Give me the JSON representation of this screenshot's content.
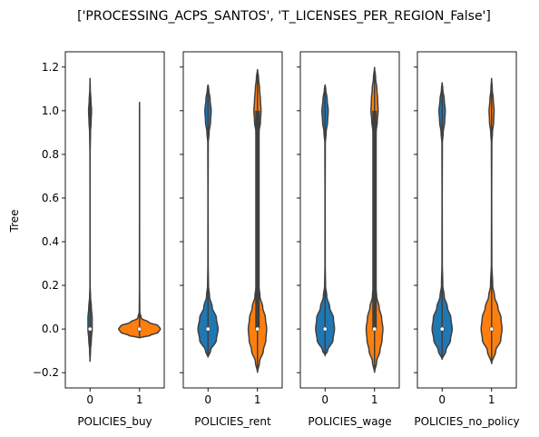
{
  "title": "['PROCESSING_ACPS_SANTOS', 'T_LICENSES_PER_REGION_False']",
  "colors": {
    "group0": "#1f77b4",
    "group1": "#ff7f0e",
    "edge": "#3f3f3f",
    "median": "#ffffff"
  },
  "chart_data": {
    "type": "violin",
    "title": "['PROCESSING_ACPS_SANTOS', 'T_LICENSES_PER_REGION_False']",
    "ylabel": "Tree",
    "ylim": [
      -0.27,
      1.27
    ],
    "yticks": [
      -0.2,
      0.0,
      0.2,
      0.4,
      0.6,
      0.8,
      1.0,
      1.2
    ],
    "ytick_labels": [
      "−0.2",
      "0.0",
      "0.2",
      "0.4",
      "0.6",
      "0.8",
      "1.0",
      "1.2"
    ],
    "shared_y": true,
    "subplots": [
      {
        "xlabel": "POLICIES_buy",
        "categories": [
          "0",
          "1"
        ],
        "violins": [
          {
            "category": "0",
            "extent": [
              -0.15,
              1.15
            ],
            "median": 0.0,
            "q1": 0.0,
            "q3": 0.0,
            "profile": [
              [
                -0.15,
                0.0
              ],
              [
                -0.1,
                0.02
              ],
              [
                -0.05,
                0.06
              ],
              [
                0.0,
                0.1
              ],
              [
                0.05,
                0.1
              ],
              [
                0.1,
                0.06
              ],
              [
                0.15,
                0.02
              ],
              [
                0.2,
                0.004
              ],
              [
                0.4,
                0.002
              ],
              [
                0.6,
                0.002
              ],
              [
                0.8,
                0.004
              ],
              [
                0.9,
                0.02
              ],
              [
                0.95,
                0.05
              ],
              [
                1.0,
                0.07
              ],
              [
                1.05,
                0.04
              ],
              [
                1.1,
                0.01
              ],
              [
                1.15,
                0.0
              ]
            ]
          },
          {
            "category": "1",
            "extent": [
              -0.04,
              1.04
            ],
            "median": 0.0,
            "q1": 0.0,
            "q3": 0.0,
            "profile": [
              [
                -0.04,
                0.0
              ],
              [
                -0.03,
                0.5
              ],
              [
                -0.015,
                0.9
              ],
              [
                0.0,
                1.0
              ],
              [
                0.015,
                0.9
              ],
              [
                0.03,
                0.45
              ],
              [
                0.05,
                0.08
              ],
              [
                0.08,
                0.012
              ],
              [
                0.2,
                0.004
              ],
              [
                0.6,
                0.003
              ],
              [
                1.0,
                0.003
              ],
              [
                1.04,
                0.0
              ]
            ]
          }
        ]
      },
      {
        "xlabel": "POLICIES_rent",
        "categories": [
          "0",
          "1"
        ],
        "violins": [
          {
            "category": "0",
            "extent": [
              -0.13,
              1.12
            ],
            "median": 0.0,
            "q1": 0.0,
            "q3": 0.0,
            "profile": [
              [
                -0.13,
                0.0
              ],
              [
                -0.1,
                0.12
              ],
              [
                -0.05,
                0.4
              ],
              [
                0.0,
                0.48
              ],
              [
                0.05,
                0.4
              ],
              [
                0.1,
                0.2
              ],
              [
                0.15,
                0.07
              ],
              [
                0.2,
                0.02
              ],
              [
                0.3,
                0.006
              ],
              [
                0.6,
                0.004
              ],
              [
                0.85,
                0.01
              ],
              [
                0.9,
                0.05
              ],
              [
                0.95,
                0.12
              ],
              [
                1.0,
                0.15
              ],
              [
                1.05,
                0.1
              ],
              [
                1.1,
                0.03
              ],
              [
                1.12,
                0.0
              ]
            ]
          },
          {
            "category": "1",
            "extent": [
              -0.2,
              1.19
            ],
            "median": 0.0,
            "q1": 0.0,
            "q3": 1.0,
            "profile": [
              [
                -0.2,
                0.0
              ],
              [
                -0.15,
                0.1
              ],
              [
                -0.1,
                0.28
              ],
              [
                -0.05,
                0.4
              ],
              [
                0.0,
                0.44
              ],
              [
                0.05,
                0.38
              ],
              [
                0.1,
                0.25
              ],
              [
                0.15,
                0.12
              ],
              [
                0.2,
                0.06
              ],
              [
                0.3,
                0.03
              ],
              [
                0.5,
                0.02
              ],
              [
                0.7,
                0.02
              ],
              [
                0.85,
                0.03
              ],
              [
                0.9,
                0.07
              ],
              [
                0.95,
                0.14
              ],
              [
                1.0,
                0.17
              ],
              [
                1.05,
                0.14
              ],
              [
                1.1,
                0.1
              ],
              [
                1.15,
                0.05
              ],
              [
                1.19,
                0.0
              ]
            ]
          }
        ]
      },
      {
        "xlabel": "POLICIES_wage",
        "categories": [
          "0",
          "1"
        ],
        "violins": [
          {
            "category": "0",
            "extent": [
              -0.12,
              1.12
            ],
            "median": 0.0,
            "q1": 0.0,
            "q3": 0.0,
            "profile": [
              [
                -0.12,
                0.0
              ],
              [
                -0.1,
                0.12
              ],
              [
                -0.05,
                0.38
              ],
              [
                0.0,
                0.45
              ],
              [
                0.05,
                0.4
              ],
              [
                0.1,
                0.22
              ],
              [
                0.15,
                0.08
              ],
              [
                0.2,
                0.02
              ],
              [
                0.3,
                0.006
              ],
              [
                0.6,
                0.004
              ],
              [
                0.85,
                0.01
              ],
              [
                0.9,
                0.05
              ],
              [
                0.95,
                0.12
              ],
              [
                1.0,
                0.15
              ],
              [
                1.05,
                0.1
              ],
              [
                1.1,
                0.03
              ],
              [
                1.12,
                0.0
              ]
            ]
          },
          {
            "category": "1",
            "extent": [
              -0.2,
              1.2
            ],
            "median": 0.0,
            "q1": 0.0,
            "q3": 1.0,
            "profile": [
              [
                -0.2,
                0.0
              ],
              [
                -0.15,
                0.1
              ],
              [
                -0.1,
                0.26
              ],
              [
                -0.05,
                0.36
              ],
              [
                0.0,
                0.4
              ],
              [
                0.05,
                0.34
              ],
              [
                0.1,
                0.22
              ],
              [
                0.15,
                0.1
              ],
              [
                0.2,
                0.05
              ],
              [
                0.3,
                0.025
              ],
              [
                0.5,
                0.02
              ],
              [
                0.7,
                0.02
              ],
              [
                0.85,
                0.03
              ],
              [
                0.9,
                0.07
              ],
              [
                0.95,
                0.13
              ],
              [
                1.0,
                0.17
              ],
              [
                1.05,
                0.15
              ],
              [
                1.1,
                0.11
              ],
              [
                1.15,
                0.05
              ],
              [
                1.2,
                0.0
              ]
            ]
          }
        ]
      },
      {
        "xlabel": "POLICIES_no_policy",
        "categories": [
          "0",
          "1"
        ],
        "violins": [
          {
            "category": "0",
            "extent": [
              -0.14,
              1.13
            ],
            "median": 0.0,
            "q1": 0.0,
            "q3": 0.0,
            "profile": [
              [
                -0.14,
                0.0
              ],
              [
                -0.1,
                0.18
              ],
              [
                -0.05,
                0.4
              ],
              [
                0.0,
                0.48
              ],
              [
                0.05,
                0.42
              ],
              [
                0.1,
                0.25
              ],
              [
                0.15,
                0.1
              ],
              [
                0.2,
                0.03
              ],
              [
                0.3,
                0.008
              ],
              [
                0.6,
                0.004
              ],
              [
                0.85,
                0.01
              ],
              [
                0.9,
                0.05
              ],
              [
                0.95,
                0.12
              ],
              [
                1.0,
                0.15
              ],
              [
                1.05,
                0.1
              ],
              [
                1.1,
                0.03
              ],
              [
                1.13,
                0.0
              ]
            ]
          },
          {
            "category": "1",
            "extent": [
              -0.16,
              1.15
            ],
            "median": 0.0,
            "q1": 0.0,
            "q3": 0.0,
            "profile": [
              [
                -0.16,
                0.0
              ],
              [
                -0.1,
                0.2
              ],
              [
                -0.05,
                0.44
              ],
              [
                0.0,
                0.5
              ],
              [
                0.05,
                0.45
              ],
              [
                0.1,
                0.3
              ],
              [
                0.15,
                0.14
              ],
              [
                0.2,
                0.05
              ],
              [
                0.3,
                0.01
              ],
              [
                0.6,
                0.004
              ],
              [
                0.85,
                0.01
              ],
              [
                0.9,
                0.04
              ],
              [
                0.95,
                0.1
              ],
              [
                1.0,
                0.12
              ],
              [
                1.05,
                0.08
              ],
              [
                1.1,
                0.03
              ],
              [
                1.15,
                0.0
              ]
            ]
          }
        ]
      }
    ]
  }
}
